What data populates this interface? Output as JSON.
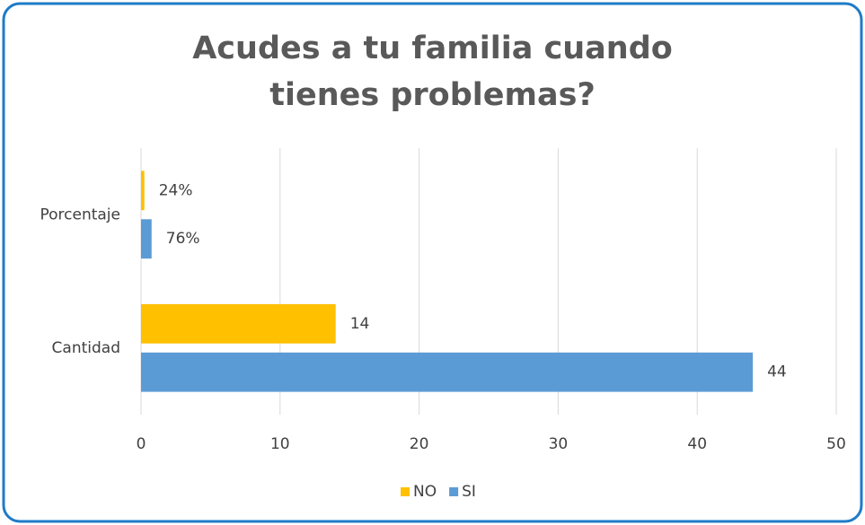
{
  "chart_data": {
    "type": "bar",
    "orientation": "horizontal",
    "title": "Acudes a tu familia cuando tienes problemas?",
    "categories": [
      "Porcentaje",
      "Cantidad"
    ],
    "series": [
      {
        "name": "NO",
        "color": "#ffc000",
        "values": [
          0.24,
          14
        ],
        "value_labels": [
          "24%",
          "14"
        ]
      },
      {
        "name": "SI",
        "color": "#5b9bd5",
        "values": [
          0.76,
          44
        ],
        "value_labels": [
          "76%",
          "44"
        ]
      }
    ],
    "xlim": [
      0,
      50
    ],
    "xticks": [
      0,
      10,
      20,
      30,
      40,
      50
    ],
    "grid": true,
    "legend": "bottom"
  }
}
